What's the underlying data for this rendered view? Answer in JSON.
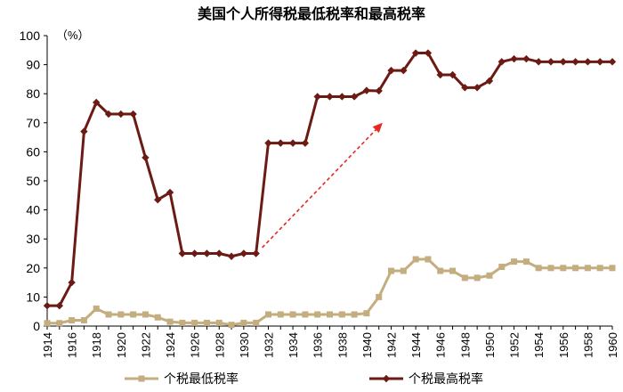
{
  "chart_data": {
    "type": "line",
    "title": "美国个人所得税最低税率和最高税率",
    "y_unit": "（%）",
    "ylim": [
      0,
      100
    ],
    "y_ticks": [
      0,
      10,
      20,
      30,
      40,
      50,
      60,
      70,
      80,
      90,
      100
    ],
    "x_ticks": [
      1914,
      1916,
      1918,
      1920,
      1922,
      1924,
      1926,
      1928,
      1930,
      1932,
      1934,
      1936,
      1938,
      1940,
      1942,
      1944,
      1946,
      1948,
      1950,
      1952,
      1954,
      1956,
      1958,
      1960
    ],
    "x": [
      1914,
      1915,
      1916,
      1917,
      1918,
      1919,
      1920,
      1921,
      1922,
      1923,
      1924,
      1925,
      1926,
      1927,
      1928,
      1929,
      1930,
      1931,
      1932,
      1933,
      1934,
      1935,
      1936,
      1937,
      1938,
      1939,
      1940,
      1941,
      1942,
      1943,
      1944,
      1945,
      1946,
      1947,
      1948,
      1949,
      1950,
      1951,
      1952,
      1953,
      1954,
      1955,
      1956,
      1957,
      1958,
      1959,
      1960
    ],
    "series": [
      {
        "name": "个税最低税率",
        "color": "#c4ad7e",
        "marker": "square",
        "values": [
          1,
          1,
          2,
          2,
          6,
          4,
          4,
          4,
          4,
          3,
          1.5,
          1.1,
          1.1,
          1.1,
          1.1,
          0.4,
          1.1,
          1.1,
          4,
          4,
          4,
          4,
          4,
          4,
          4,
          4,
          4.4,
          10,
          19,
          19,
          23,
          23,
          19,
          19,
          16.6,
          16.6,
          17.4,
          20.4,
          22.2,
          22.2,
          20,
          20,
          20,
          20,
          20,
          20,
          20
        ]
      },
      {
        "name": "个税最高税率",
        "color": "#6b1a14",
        "marker": "diamond",
        "values": [
          7,
          7,
          15,
          67,
          77,
          73,
          73,
          73,
          58,
          43.5,
          46,
          25,
          25,
          25,
          25,
          24,
          25,
          25,
          63,
          63,
          63,
          63,
          79,
          79,
          79,
          79,
          81.1,
          81,
          88,
          88,
          94,
          94,
          86.5,
          86.5,
          82.1,
          82.1,
          84.4,
          91,
          92,
          92,
          91,
          91,
          91,
          91,
          91,
          91,
          91
        ]
      }
    ],
    "annotation": {
      "type": "dashed-arrow",
      "color": "#e8271f",
      "from": [
        1931.5,
        27
      ],
      "to": [
        1941.3,
        70
      ]
    },
    "legend_position": "bottom",
    "grid": false
  }
}
